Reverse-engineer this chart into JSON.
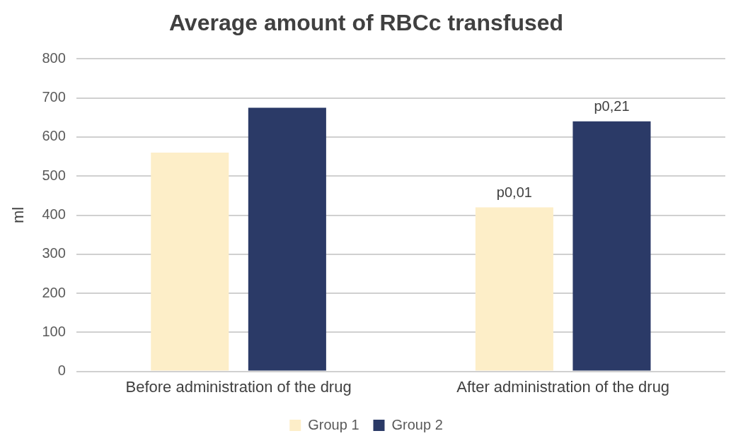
{
  "chart_data": {
    "type": "bar",
    "title": "Average amount of RBCc transfused",
    "ylabel": "ml",
    "categories": [
      "Before administration of the drug",
      "After administration of the drug"
    ],
    "series": [
      {
        "name": "Group 1",
        "color": "#fdeec8",
        "values": [
          560,
          420
        ],
        "value_labels": [
          null,
          "p0,01"
        ]
      },
      {
        "name": "Group 2",
        "color": "#2b3a67",
        "values": [
          675,
          640
        ],
        "value_labels": [
          null,
          "p0,21"
        ]
      }
    ],
    "ylim": [
      0,
      800
    ],
    "yticks": [
      0,
      100,
      200,
      300,
      400,
      500,
      600,
      700,
      800
    ],
    "grid": "y",
    "legend": "bottom"
  }
}
